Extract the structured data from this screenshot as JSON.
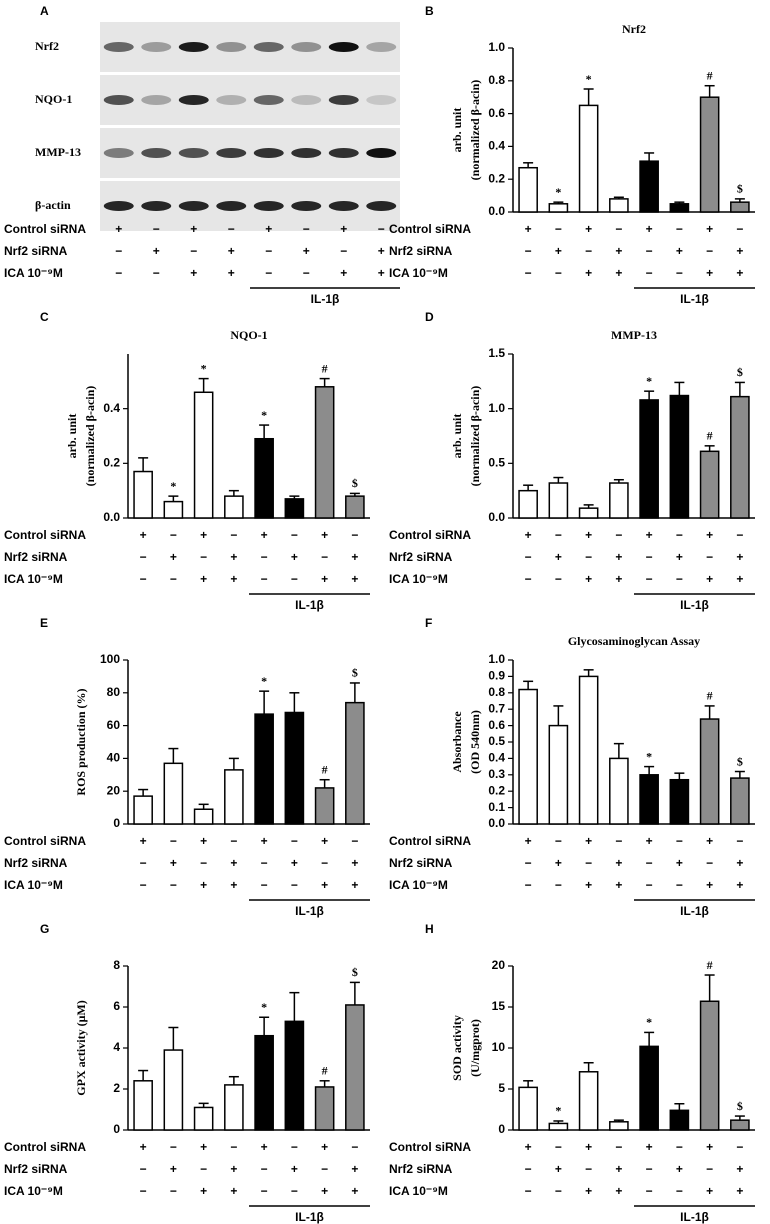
{
  "blot": {
    "label": "A",
    "rows": [
      "Nrf2",
      "NQO-1",
      "MMP-13",
      "β-actin"
    ],
    "conditions": [
      {
        "label": "Control siRNA",
        "signs": [
          "+",
          "−",
          "+",
          "−",
          "+",
          "−",
          "+",
          "−"
        ]
      },
      {
        "label": "Nrf2 siRNA",
        "signs": [
          "−",
          "+",
          "−",
          "+",
          "−",
          "+",
          "−",
          "+"
        ]
      },
      {
        "label": "ICA 10⁻⁹M",
        "signs": [
          "−",
          "−",
          "+",
          "+",
          "−",
          "−",
          "+",
          "+"
        ]
      }
    ],
    "group_label": "IL-1β"
  },
  "chart_data": [
    {
      "type": "bar",
      "label": "B",
      "title": "Nrf2",
      "ylabel": [
        "arb. unit",
        "(normalized β-acin)"
      ],
      "values": [
        0.27,
        0.05,
        0.65,
        0.08,
        0.31,
        0.05,
        0.7,
        0.06
      ],
      "errors": [
        0.03,
        0.01,
        0.1,
        0.01,
        0.05,
        0.01,
        0.07,
        0.02
      ],
      "colors": [
        "#ffffff",
        "#ffffff",
        "#ffffff",
        "#ffffff",
        "#000000",
        "#000000",
        "#8c8c8c",
        "#8c8c8c"
      ],
      "markers": [
        null,
        "*",
        "*",
        null,
        null,
        null,
        "#",
        "$"
      ],
      "ylim": [
        0,
        1
      ],
      "yticks": [
        {
          "value": 0,
          "label": "0.0"
        },
        0.2,
        0.4,
        0.6,
        0.8,
        {
          "value": 1,
          "label": "1.0"
        }
      ],
      "conditions": [
        {
          "label": "Control  siRNA",
          "signs": [
            "+",
            "−",
            "+",
            "−",
            "+",
            "−",
            "+",
            "−"
          ]
        },
        {
          "label": "Nrf2 siRNA",
          "signs": [
            "−",
            "+",
            "−",
            "+",
            "−",
            "+",
            "−",
            "+"
          ]
        },
        {
          "label": "ICA 10⁻⁹M",
          "signs": [
            "−",
            "−",
            "+",
            "+",
            "−",
            "−",
            "+",
            "+"
          ]
        }
      ],
      "group_label": "IL-1β"
    },
    {
      "type": "bar",
      "label": "C",
      "title": "NQO-1",
      "ylabel": [
        "arb. unit",
        "(normalized β-acin)"
      ],
      "values": [
        0.17,
        0.06,
        0.46,
        0.08,
        0.29,
        0.07,
        0.48,
        0.08
      ],
      "errors": [
        0.05,
        0.02,
        0.05,
        0.02,
        0.05,
        0.01,
        0.03,
        0.01
      ],
      "colors": [
        "#ffffff",
        "#ffffff",
        "#ffffff",
        "#ffffff",
        "#000000",
        "#000000",
        "#8c8c8c",
        "#8c8c8c"
      ],
      "markers": [
        null,
        "*",
        "*",
        null,
        "*",
        null,
        "#",
        "$"
      ],
      "ylim": [
        0,
        0.6
      ],
      "yticks": [
        {
          "value": 0,
          "label": "0.0"
        },
        0.2,
        0.4
      ],
      "conditions": [
        {
          "label": "Control  siRNA",
          "signs": [
            "+",
            "−",
            "+",
            "−",
            "+",
            "−",
            "+",
            "−"
          ]
        },
        {
          "label": "Nrf2 siRNA",
          "signs": [
            "−",
            "+",
            "−",
            "+",
            "−",
            "+",
            "−",
            "+"
          ]
        },
        {
          "label": "ICA 10⁻⁹M",
          "signs": [
            "−",
            "−",
            "+",
            "+",
            "−",
            "−",
            "+",
            "+"
          ]
        }
      ],
      "group_label": "IL-1β"
    },
    {
      "type": "bar",
      "label": "D",
      "title": "MMP-13",
      "ylabel": [
        "arb. unit",
        "(normalized β-acin)"
      ],
      "values": [
        0.25,
        0.32,
        0.09,
        0.32,
        1.08,
        1.12,
        0.61,
        1.11
      ],
      "errors": [
        0.05,
        0.05,
        0.03,
        0.03,
        0.08,
        0.12,
        0.05,
        0.13
      ],
      "colors": [
        "#ffffff",
        "#ffffff",
        "#ffffff",
        "#ffffff",
        "#000000",
        "#000000",
        "#8c8c8c",
        "#8c8c8c"
      ],
      "markers": [
        null,
        null,
        null,
        null,
        "*",
        null,
        "#",
        "$"
      ],
      "ylim": [
        0,
        1.5
      ],
      "yticks": [
        {
          "value": 0,
          "label": "0.0"
        },
        0.5,
        {
          "value": 1,
          "label": "1.0"
        },
        1.5
      ],
      "conditions": [
        {
          "label": "Control  siRNA",
          "signs": [
            "+",
            "−",
            "+",
            "−",
            "+",
            "−",
            "+",
            "−"
          ]
        },
        {
          "label": "Nrf2 siRNA",
          "signs": [
            "−",
            "+",
            "−",
            "+",
            "−",
            "+",
            "−",
            "+"
          ]
        },
        {
          "label": "ICA 10⁻⁹M",
          "signs": [
            "−",
            "−",
            "+",
            "+",
            "−",
            "−",
            "+",
            "+"
          ]
        }
      ],
      "group_label": "IL-1β"
    },
    {
      "type": "bar",
      "label": "E",
      "ylabel": [
        "ROS production (%)"
      ],
      "values": [
        17,
        37,
        9,
        33,
        67,
        68,
        22,
        74
      ],
      "errors": [
        4,
        9,
        3,
        7,
        14,
        12,
        5,
        12
      ],
      "colors": [
        "#ffffff",
        "#ffffff",
        "#ffffff",
        "#ffffff",
        "#000000",
        "#000000",
        "#8c8c8c",
        "#8c8c8c"
      ],
      "markers": [
        null,
        null,
        null,
        null,
        "*",
        null,
        "#",
        "$"
      ],
      "ylim": [
        0,
        100
      ],
      "yticks": [
        0,
        20,
        40,
        60,
        80,
        100
      ],
      "conditions": [
        {
          "label": "Control  siRNA",
          "signs": [
            "+",
            "−",
            "+",
            "−",
            "+",
            "−",
            "+",
            "−"
          ]
        },
        {
          "label": "Nrf2 siRNA",
          "signs": [
            "−",
            "+",
            "−",
            "+",
            "−",
            "+",
            "−",
            "+"
          ]
        },
        {
          "label": "ICA 10⁻⁹M",
          "signs": [
            "−",
            "−",
            "+",
            "+",
            "−",
            "−",
            "+",
            "+"
          ]
        }
      ],
      "group_label": "IL-1β"
    },
    {
      "type": "bar",
      "label": "F",
      "title": "Glycosaminoglycan Assay",
      "ylabel": [
        "Absorbance",
        "(OD 540nm)"
      ],
      "values": [
        0.82,
        0.6,
        0.9,
        0.4,
        0.3,
        0.27,
        0.64,
        0.28
      ],
      "errors": [
        0.05,
        0.12,
        0.04,
        0.09,
        0.05,
        0.04,
        0.08,
        0.04
      ],
      "colors": [
        "#ffffff",
        "#ffffff",
        "#ffffff",
        "#ffffff",
        "#000000",
        "#000000",
        "#8c8c8c",
        "#8c8c8c"
      ],
      "markers": [
        null,
        null,
        null,
        null,
        "*",
        null,
        "#",
        "$"
      ],
      "ylim": [
        0,
        1
      ],
      "yticks": [
        {
          "value": 0,
          "label": "0.0"
        },
        0.1,
        0.2,
        0.3,
        0.4,
        0.5,
        0.6,
        0.7,
        0.8,
        0.9,
        {
          "value": 1,
          "label": "1.0"
        }
      ],
      "conditions": [
        {
          "label": "Control  siRNA",
          "signs": [
            "+",
            "−",
            "+",
            "−",
            "+",
            "−",
            "+",
            "−"
          ]
        },
        {
          "label": "Nrf2 siRNA",
          "signs": [
            "−",
            "+",
            "−",
            "+",
            "−",
            "+",
            "−",
            "+"
          ]
        },
        {
          "label": "ICA 10⁻⁹M",
          "signs": [
            "−",
            "−",
            "+",
            "+",
            "−",
            "−",
            "+",
            "+"
          ]
        }
      ],
      "group_label": "IL-1β"
    },
    {
      "type": "bar",
      "label": "G",
      "ylabel": [
        "GPX activity (μM)"
      ],
      "values": [
        2.4,
        3.9,
        1.1,
        2.2,
        4.6,
        5.3,
        2.1,
        6.1
      ],
      "errors": [
        0.5,
        1.1,
        0.2,
        0.4,
        0.9,
        1.4,
        0.3,
        1.1
      ],
      "colors": [
        "#ffffff",
        "#ffffff",
        "#ffffff",
        "#ffffff",
        "#000000",
        "#000000",
        "#8c8c8c",
        "#8c8c8c"
      ],
      "markers": [
        null,
        null,
        null,
        null,
        "*",
        null,
        "#",
        "$"
      ],
      "ylim": [
        0,
        8
      ],
      "yticks": [
        0,
        2,
        4,
        6,
        8
      ],
      "conditions": [
        {
          "label": "Control  siRNA",
          "signs": [
            "+",
            "−",
            "+",
            "−",
            "+",
            "−",
            "+",
            "−"
          ]
        },
        {
          "label": "Nrf2 siRNA",
          "signs": [
            "−",
            "+",
            "−",
            "+",
            "−",
            "+",
            "−",
            "+"
          ]
        },
        {
          "label": "ICA 10⁻⁹M",
          "signs": [
            "−",
            "−",
            "+",
            "+",
            "−",
            "−",
            "+",
            "+"
          ]
        }
      ],
      "group_label": "IL-1β"
    },
    {
      "type": "bar",
      "label": "H",
      "ylabel": [
        "SOD activity",
        "(U/mgprot)"
      ],
      "values": [
        5.2,
        0.8,
        7.1,
        1.0,
        10.2,
        2.4,
        15.7,
        1.2
      ],
      "errors": [
        0.8,
        0.3,
        1.1,
        0.2,
        1.7,
        0.8,
        3.2,
        0.5
      ],
      "colors": [
        "#ffffff",
        "#ffffff",
        "#ffffff",
        "#ffffff",
        "#000000",
        "#000000",
        "#8c8c8c",
        "#8c8c8c"
      ],
      "markers": [
        null,
        "*",
        null,
        null,
        "*",
        null,
        "#",
        "$"
      ],
      "ylim": [
        0,
        20
      ],
      "yticks": [
        0,
        5,
        10,
        15,
        20
      ],
      "conditions": [
        {
          "label": "Control  siRNA",
          "signs": [
            "+",
            "−",
            "+",
            "−",
            "+",
            "−",
            "+",
            "−"
          ]
        },
        {
          "label": "Nrf2 siRNA",
          "signs": [
            "−",
            "+",
            "−",
            "+",
            "−",
            "+",
            "−",
            "+"
          ]
        },
        {
          "label": "ICA 10⁻⁹M",
          "signs": [
            "−",
            "−",
            "+",
            "+",
            "−",
            "−",
            "+",
            "+"
          ]
        }
      ],
      "group_label": "IL-1β"
    }
  ]
}
